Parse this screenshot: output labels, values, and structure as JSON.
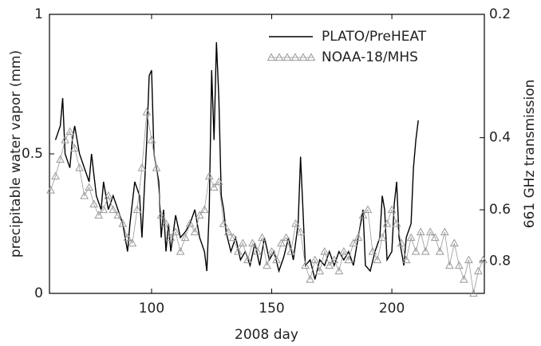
{
  "chart_data": {
    "type": "line",
    "xlabel": "2008 day",
    "ylabel": "precipitable water vapor (mm)",
    "y2label": "661 GHz transmission",
    "xlim": [
      57.5,
      238.5
    ],
    "xticks": [
      100,
      150,
      200
    ],
    "ylim": [
      0,
      1
    ],
    "yticks": [
      0,
      0.5,
      1
    ],
    "y2lim": [
      0.96,
      0.2
    ],
    "y2ticks": [
      0.2,
      0.4,
      0.6,
      0.8
    ],
    "y2log": true,
    "legend": "upper right",
    "series": [
      {
        "name": "PLATO/PreHEAT",
        "color": "#000000",
        "marker": "none",
        "x": [
          60,
          62,
          63,
          64,
          66,
          67,
          68,
          70,
          72,
          74,
          75,
          77,
          79,
          80,
          82,
          84,
          86,
          88,
          90,
          91,
          93,
          95,
          96,
          98,
          99,
          100,
          101,
          103,
          104,
          105,
          106,
          107,
          108,
          110,
          112,
          114,
          116,
          118,
          120,
          122,
          123,
          124,
          125,
          126,
          127,
          128,
          129,
          130,
          131,
          133,
          135,
          137,
          139,
          141,
          143,
          145,
          147,
          149,
          151,
          153,
          155,
          157,
          159,
          161,
          162,
          163,
          164,
          166,
          168,
          170,
          172,
          174,
          176,
          178,
          180,
          182,
          184,
          186,
          188,
          189,
          191,
          193,
          195,
          196,
          197,
          198,
          200,
          201,
          202,
          203,
          205,
          206,
          208,
          209,
          210,
          211
        ],
        "values": [
          0.55,
          0.6,
          0.7,
          0.5,
          0.45,
          0.55,
          0.6,
          0.5,
          0.45,
          0.4,
          0.5,
          0.35,
          0.3,
          0.4,
          0.3,
          0.35,
          0.3,
          0.25,
          0.15,
          0.25,
          0.4,
          0.35,
          0.2,
          0.55,
          0.78,
          0.8,
          0.5,
          0.4,
          0.2,
          0.3,
          0.15,
          0.25,
          0.15,
          0.28,
          0.2,
          0.22,
          0.25,
          0.3,
          0.2,
          0.15,
          0.08,
          0.3,
          0.8,
          0.55,
          0.9,
          0.7,
          0.35,
          0.3,
          0.22,
          0.15,
          0.2,
          0.12,
          0.15,
          0.1,
          0.18,
          0.1,
          0.2,
          0.12,
          0.15,
          0.08,
          0.13,
          0.2,
          0.12,
          0.25,
          0.49,
          0.3,
          0.1,
          0.12,
          0.05,
          0.12,
          0.1,
          0.15,
          0.1,
          0.15,
          0.12,
          0.15,
          0.1,
          0.2,
          0.3,
          0.1,
          0.08,
          0.15,
          0.2,
          0.35,
          0.3,
          0.12,
          0.15,
          0.32,
          0.4,
          0.2,
          0.1,
          0.2,
          0.25,
          0.45,
          0.55,
          0.62
        ]
      },
      {
        "name": "NOAA-18/MHS",
        "color": "#999999",
        "marker": "triangle",
        "x": [
          58,
          60,
          62,
          64,
          66,
          68,
          70,
          72,
          74,
          76,
          78,
          80,
          82,
          84,
          86,
          88,
          90,
          92,
          94,
          96,
          98,
          100,
          102,
          104,
          106,
          108,
          110,
          112,
          114,
          116,
          118,
          120,
          122,
          124,
          126,
          128,
          130,
          132,
          134,
          136,
          138,
          140,
          142,
          144,
          146,
          148,
          150,
          152,
          154,
          156,
          158,
          160,
          162,
          164,
          166,
          168,
          170,
          172,
          174,
          176,
          178,
          180,
          182,
          184,
          186,
          188,
          190,
          192,
          194,
          196,
          198,
          200,
          202,
          204,
          206,
          208,
          210,
          212,
          214,
          216,
          218,
          220,
          222,
          224,
          226,
          228,
          230,
          232,
          234,
          236,
          238
        ],
        "values": [
          0.37,
          0.42,
          0.48,
          0.55,
          0.58,
          0.52,
          0.45,
          0.35,
          0.38,
          0.32,
          0.28,
          0.3,
          0.35,
          0.3,
          0.28,
          0.25,
          0.2,
          0.18,
          0.3,
          0.45,
          0.65,
          0.55,
          0.45,
          0.28,
          0.25,
          0.2,
          0.22,
          0.15,
          0.2,
          0.25,
          0.22,
          0.28,
          0.3,
          0.42,
          0.38,
          0.4,
          0.25,
          0.22,
          0.2,
          0.15,
          0.18,
          0.12,
          0.18,
          0.15,
          0.2,
          0.1,
          0.15,
          0.12,
          0.18,
          0.2,
          0.15,
          0.25,
          0.22,
          0.1,
          0.05,
          0.12,
          0.08,
          0.15,
          0.1,
          0.12,
          0.08,
          0.15,
          0.12,
          0.18,
          0.2,
          0.28,
          0.3,
          0.15,
          0.12,
          0.2,
          0.25,
          0.3,
          0.25,
          0.18,
          0.12,
          0.2,
          0.15,
          0.22,
          0.15,
          0.22,
          0.2,
          0.15,
          0.22,
          0.1,
          0.18,
          0.1,
          0.05,
          0.12,
          0.0,
          0.08,
          0.12
        ]
      }
    ]
  }
}
